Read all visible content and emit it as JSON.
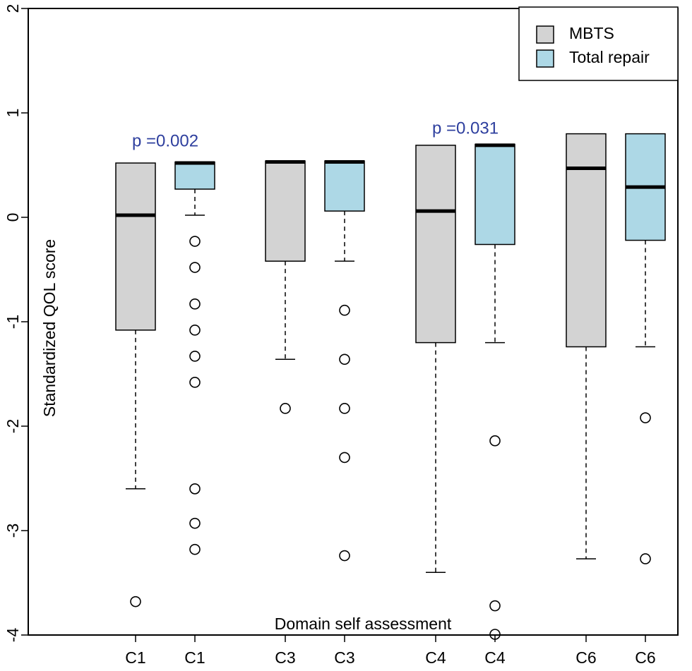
{
  "chart_data": {
    "type": "boxplot",
    "title": "",
    "xlabel": "Domain self assessment",
    "ylabel": "Standardized QOL score",
    "ylim": [
      -4,
      2
    ],
    "yticks": [
      2,
      1,
      0,
      -1,
      -2,
      -3,
      -4
    ],
    "ytick_labels": [
      "2",
      "1",
      "0",
      "-1",
      "-2",
      "-3",
      "-4"
    ],
    "legend": {
      "position": "top-right",
      "entries": [
        {
          "name": "MBTS",
          "color": "#d3d3d3"
        },
        {
          "name": "Total repair",
          "color": "#add8e6"
        }
      ]
    },
    "boxes": [
      {
        "label": "C1",
        "series": "MBTS",
        "whisker_low": -2.6,
        "q1": -1.08,
        "median": 0.02,
        "q3": 0.52,
        "whisker_high": 0.52,
        "outliers": [
          -3.68
        ]
      },
      {
        "label": "C1",
        "series": "Total repair",
        "whisker_low": 0.02,
        "q1": 0.27,
        "median": 0.52,
        "q3": 0.53,
        "whisker_high": 0.53,
        "outliers": [
          -0.23,
          -0.48,
          -0.83,
          -1.08,
          -1.33,
          -1.58,
          -2.6,
          -2.93,
          -3.18
        ]
      },
      {
        "label": "C3",
        "series": "MBTS",
        "whisker_low": -1.36,
        "q1": -0.42,
        "median": 0.53,
        "q3": 0.54,
        "whisker_high": 0.54,
        "outliers": [
          -1.83
        ]
      },
      {
        "label": "C3",
        "series": "Total repair",
        "whisker_low": -0.42,
        "q1": 0.06,
        "median": 0.53,
        "q3": 0.54,
        "whisker_high": 0.54,
        "outliers": [
          -0.89,
          -1.36,
          -1.83,
          -2.3,
          -3.24
        ]
      },
      {
        "label": "C4",
        "series": "MBTS",
        "whisker_low": -3.4,
        "q1": -1.2,
        "median": 0.06,
        "q3": 0.69,
        "whisker_high": 0.69,
        "outliers": []
      },
      {
        "label": "C4",
        "series": "Total repair",
        "whisker_low": -1.2,
        "q1": -0.26,
        "median": 0.69,
        "q3": 0.7,
        "whisker_high": 0.7,
        "outliers": [
          -2.14,
          -3.72,
          -4.0
        ]
      },
      {
        "label": "C6",
        "series": "MBTS",
        "whisker_low": -3.27,
        "q1": -1.24,
        "median": 0.47,
        "q3": 0.8,
        "whisker_high": 0.8,
        "outliers": []
      },
      {
        "label": "C6",
        "series": "Total repair",
        "whisker_low": -1.24,
        "q1": -0.22,
        "median": 0.29,
        "q3": 0.8,
        "whisker_high": 0.8,
        "outliers": [
          -1.92,
          -3.27
        ]
      }
    ],
    "annotations": [
      {
        "text": "p =0.002",
        "group": "C1",
        "y": 0.68,
        "color": "#2e3f9e"
      },
      {
        "text": "p =0.031",
        "group": "C4",
        "y": 0.8,
        "color": "#2e3f9e"
      }
    ]
  }
}
